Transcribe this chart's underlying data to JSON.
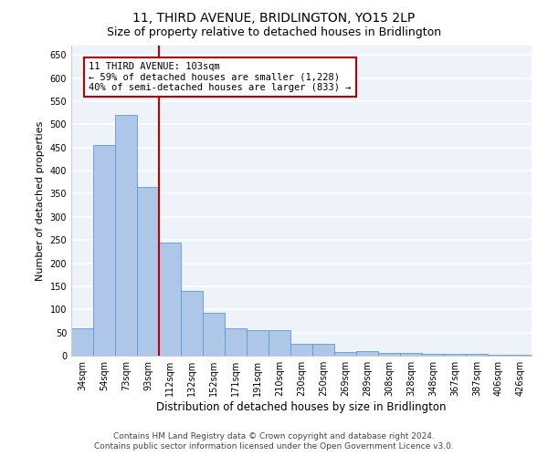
{
  "title": "11, THIRD AVENUE, BRIDLINGTON, YO15 2LP",
  "subtitle": "Size of property relative to detached houses in Bridlington",
  "xlabel": "Distribution of detached houses by size in Bridlington",
  "ylabel": "Number of detached properties",
  "categories": [
    "34sqm",
    "54sqm",
    "73sqm",
    "93sqm",
    "112sqm",
    "132sqm",
    "152sqm",
    "171sqm",
    "191sqm",
    "210sqm",
    "230sqm",
    "250sqm",
    "269sqm",
    "289sqm",
    "308sqm",
    "328sqm",
    "348sqm",
    "367sqm",
    "387sqm",
    "406sqm",
    "426sqm"
  ],
  "values": [
    60,
    455,
    520,
    365,
    245,
    140,
    92,
    60,
    56,
    55,
    26,
    25,
    8,
    10,
    5,
    6,
    4,
    4,
    3,
    2,
    2
  ],
  "bar_color": "#aec6e8",
  "bar_edge_color": "#5b9bd5",
  "vline_x_index": 3.5,
  "vline_color": "#c00000",
  "annotation_text": "11 THIRD AVENUE: 103sqm\n← 59% of detached houses are smaller (1,228)\n40% of semi-detached houses are larger (833) →",
  "annotation_box_color": "#ffffff",
  "annotation_box_edge_color": "#c00000",
  "ylim": [
    0,
    670
  ],
  "yticks": [
    0,
    50,
    100,
    150,
    200,
    250,
    300,
    350,
    400,
    450,
    500,
    550,
    600,
    650
  ],
  "background_color": "#eef2f9",
  "grid_color": "#ffffff",
  "footer_line1": "Contains HM Land Registry data © Crown copyright and database right 2024.",
  "footer_line2": "Contains public sector information licensed under the Open Government Licence v3.0.",
  "title_fontsize": 10,
  "subtitle_fontsize": 9,
  "xlabel_fontsize": 8.5,
  "ylabel_fontsize": 8,
  "tick_fontsize": 7,
  "footer_fontsize": 6.5,
  "annotation_fontsize": 7.5
}
